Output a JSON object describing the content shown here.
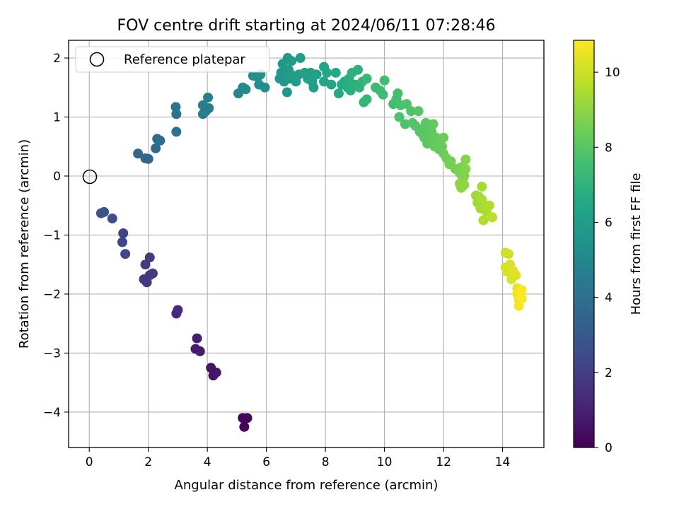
{
  "chart_data": {
    "type": "scatter",
    "title": "FOV centre drift starting at 2024/06/11 07:28:46",
    "xlabel": "Angular distance from reference (arcmin)",
    "ylabel": "Rotation from reference (arcmin)",
    "xlim": [
      -0.7,
      15.4
    ],
    "ylim": [
      -4.6,
      2.3
    ],
    "x_ticks": [
      0,
      2,
      4,
      6,
      8,
      10,
      12,
      14
    ],
    "y_ticks": [
      -4,
      -3,
      -2,
      -1,
      0,
      1,
      2
    ],
    "x_tick_labels": [
      "0",
      "2",
      "4",
      "6",
      "8",
      "10",
      "12",
      "14"
    ],
    "y_tick_labels": [
      "−4",
      "−3",
      "−2",
      "−1",
      "0",
      "1",
      "2"
    ],
    "grid": true,
    "legend": {
      "position": "top-left",
      "entries": [
        {
          "label": "Reference platepar",
          "marker": "open-circle",
          "x": 0,
          "y": 0
        }
      ]
    },
    "colorbar": {
      "label": "Hours from first FF file",
      "range": [
        0,
        10.85
      ],
      "ticks": [
        0,
        2,
        4,
        6,
        8,
        10
      ],
      "tick_labels": [
        "0",
        "2",
        "4",
        "6",
        "8",
        "10"
      ],
      "colormap": "viridis"
    },
    "points": [
      {
        "x": 5.25,
        "y": -4.25,
        "t": 0.05
      },
      {
        "x": 5.2,
        "y": -4.1,
        "t": 0.1
      },
      {
        "x": 5.35,
        "y": -4.1,
        "t": 0.15
      },
      {
        "x": 4.2,
        "y": -3.38,
        "t": 0.55
      },
      {
        "x": 4.12,
        "y": -3.25,
        "t": 0.6
      },
      {
        "x": 4.3,
        "y": -3.33,
        "t": 0.65
      },
      {
        "x": 3.6,
        "y": -2.93,
        "t": 0.85
      },
      {
        "x": 3.75,
        "y": -2.97,
        "t": 0.9
      },
      {
        "x": 3.65,
        "y": -2.75,
        "t": 0.95
      },
      {
        "x": 2.95,
        "y": -2.33,
        "t": 1.25
      },
      {
        "x": 3.0,
        "y": -2.27,
        "t": 1.3
      },
      {
        "x": 1.85,
        "y": -1.75,
        "t": 1.7
      },
      {
        "x": 1.95,
        "y": -1.8,
        "t": 1.75
      },
      {
        "x": 2.05,
        "y": -1.68,
        "t": 1.8
      },
      {
        "x": 2.15,
        "y": -1.65,
        "t": 1.82
      },
      {
        "x": 1.9,
        "y": -1.5,
        "t": 1.85
      },
      {
        "x": 2.05,
        "y": -1.38,
        "t": 1.9
      },
      {
        "x": 1.15,
        "y": -0.97,
        "t": 2.2
      },
      {
        "x": 1.12,
        "y": -1.12,
        "t": 2.22
      },
      {
        "x": 1.22,
        "y": -1.32,
        "t": 2.25
      },
      {
        "x": 0.78,
        "y": -0.72,
        "t": 2.55
      },
      {
        "x": 0.4,
        "y": -0.63,
        "t": 2.75
      },
      {
        "x": 0.5,
        "y": -0.61,
        "t": 2.8
      },
      {
        "x": 1.65,
        "y": 0.38,
        "t": 3.55
      },
      {
        "x": 1.9,
        "y": 0.3,
        "t": 3.6
      },
      {
        "x": 2.0,
        "y": 0.29,
        "t": 3.62
      },
      {
        "x": 2.25,
        "y": 0.47,
        "t": 3.75
      },
      {
        "x": 2.3,
        "y": 0.63,
        "t": 3.8
      },
      {
        "x": 2.4,
        "y": 0.6,
        "t": 3.85
      },
      {
        "x": 2.95,
        "y": 0.75,
        "t": 4.05
      },
      {
        "x": 2.95,
        "y": 1.05,
        "t": 4.15
      },
      {
        "x": 2.93,
        "y": 1.17,
        "t": 4.2
      },
      {
        "x": 3.85,
        "y": 1.05,
        "t": 4.45
      },
      {
        "x": 3.95,
        "y": 1.1,
        "t": 4.5
      },
      {
        "x": 4.05,
        "y": 1.15,
        "t": 4.55
      },
      {
        "x": 3.85,
        "y": 1.2,
        "t": 4.6
      },
      {
        "x": 4.02,
        "y": 1.33,
        "t": 4.65
      },
      {
        "x": 5.05,
        "y": 1.4,
        "t": 5.0
      },
      {
        "x": 5.2,
        "y": 1.5,
        "t": 5.05
      },
      {
        "x": 5.3,
        "y": 1.47,
        "t": 5.1
      },
      {
        "x": 5.55,
        "y": 1.7,
        "t": 5.25
      },
      {
        "x": 5.7,
        "y": 1.68,
        "t": 5.3
      },
      {
        "x": 5.75,
        "y": 1.55,
        "t": 5.35
      },
      {
        "x": 5.95,
        "y": 1.5,
        "t": 5.4
      },
      {
        "x": 5.8,
        "y": 1.72,
        "t": 5.45
      },
      {
        "x": 6.45,
        "y": 1.65,
        "t": 5.7
      },
      {
        "x": 6.5,
        "y": 1.75,
        "t": 5.72
      },
      {
        "x": 6.55,
        "y": 1.9,
        "t": 5.75
      },
      {
        "x": 6.6,
        "y": 1.6,
        "t": 5.78
      },
      {
        "x": 6.65,
        "y": 1.7,
        "t": 5.8
      },
      {
        "x": 6.7,
        "y": 1.42,
        "t": 5.82
      },
      {
        "x": 6.75,
        "y": 1.8,
        "t": 5.85
      },
      {
        "x": 6.8,
        "y": 1.65,
        "t": 5.88
      },
      {
        "x": 6.72,
        "y": 2.0,
        "t": 5.9
      },
      {
        "x": 6.85,
        "y": 1.95,
        "t": 5.93
      },
      {
        "x": 6.9,
        "y": 1.7,
        "t": 5.95
      },
      {
        "x": 7.0,
        "y": 1.6,
        "t": 5.98
      },
      {
        "x": 7.1,
        "y": 1.72,
        "t": 6.0
      },
      {
        "x": 7.15,
        "y": 2.0,
        "t": 6.02
      },
      {
        "x": 7.3,
        "y": 1.75,
        "t": 6.05
      },
      {
        "x": 7.4,
        "y": 1.65,
        "t": 6.08
      },
      {
        "x": 7.5,
        "y": 1.75,
        "t": 6.1
      },
      {
        "x": 7.55,
        "y": 1.6,
        "t": 6.12
      },
      {
        "x": 7.6,
        "y": 1.5,
        "t": 6.15
      },
      {
        "x": 7.7,
        "y": 1.72,
        "t": 6.18
      },
      {
        "x": 7.95,
        "y": 1.85,
        "t": 6.3
      },
      {
        "x": 7.95,
        "y": 1.6,
        "t": 6.35
      },
      {
        "x": 8.05,
        "y": 1.75,
        "t": 6.4
      },
      {
        "x": 8.2,
        "y": 1.55,
        "t": 6.45
      },
      {
        "x": 8.35,
        "y": 1.75,
        "t": 6.5
      },
      {
        "x": 8.45,
        "y": 1.4,
        "t": 6.55
      },
      {
        "x": 8.55,
        "y": 1.55,
        "t": 6.6
      },
      {
        "x": 8.65,
        "y": 1.6,
        "t": 6.65
      },
      {
        "x": 8.75,
        "y": 1.5,
        "t": 6.7
      },
      {
        "x": 8.8,
        "y": 1.65,
        "t": 6.75
      },
      {
        "x": 8.85,
        "y": 1.45,
        "t": 6.8
      },
      {
        "x": 8.9,
        "y": 1.75,
        "t": 6.85
      },
      {
        "x": 9.0,
        "y": 1.55,
        "t": 6.9
      },
      {
        "x": 9.1,
        "y": 1.8,
        "t": 6.95
      },
      {
        "x": 9.15,
        "y": 1.5,
        "t": 7.0
      },
      {
        "x": 9.25,
        "y": 1.6,
        "t": 7.05
      },
      {
        "x": 9.3,
        "y": 1.25,
        "t": 7.1
      },
      {
        "x": 9.4,
        "y": 1.3,
        "t": 7.15
      },
      {
        "x": 9.4,
        "y": 1.65,
        "t": 7.2
      },
      {
        "x": 9.7,
        "y": 1.5,
        "t": 7.3
      },
      {
        "x": 9.85,
        "y": 1.45,
        "t": 7.35
      },
      {
        "x": 9.95,
        "y": 1.38,
        "t": 7.4
      },
      {
        "x": 10.0,
        "y": 1.62,
        "t": 7.45
      },
      {
        "x": 10.3,
        "y": 1.22,
        "t": 7.55
      },
      {
        "x": 10.4,
        "y": 1.3,
        "t": 7.6
      },
      {
        "x": 10.45,
        "y": 1.4,
        "t": 7.62
      },
      {
        "x": 10.55,
        "y": 1.2,
        "t": 7.65
      },
      {
        "x": 10.5,
        "y": 1.0,
        "t": 7.7
      },
      {
        "x": 10.7,
        "y": 0.88,
        "t": 7.75
      },
      {
        "x": 10.75,
        "y": 1.22,
        "t": 7.8
      },
      {
        "x": 10.9,
        "y": 1.1,
        "t": 7.85
      },
      {
        "x": 10.95,
        "y": 0.9,
        "t": 7.88
      },
      {
        "x": 11.05,
        "y": 0.85,
        "t": 7.9
      },
      {
        "x": 11.15,
        "y": 1.1,
        "t": 7.92
      },
      {
        "x": 11.2,
        "y": 0.75,
        "t": 7.95
      },
      {
        "x": 11.25,
        "y": 0.8,
        "t": 7.98
      },
      {
        "x": 11.3,
        "y": 0.7,
        "t": 8.0
      },
      {
        "x": 11.35,
        "y": 0.65,
        "t": 8.02
      },
      {
        "x": 11.4,
        "y": 0.9,
        "t": 8.05
      },
      {
        "x": 11.45,
        "y": 0.55,
        "t": 8.08
      },
      {
        "x": 11.5,
        "y": 0.82,
        "t": 8.1
      },
      {
        "x": 11.55,
        "y": 0.6,
        "t": 8.12
      },
      {
        "x": 11.6,
        "y": 0.75,
        "t": 8.15
      },
      {
        "x": 11.65,
        "y": 0.88,
        "t": 8.18
      },
      {
        "x": 11.7,
        "y": 0.5,
        "t": 8.2
      },
      {
        "x": 11.75,
        "y": 0.65,
        "t": 8.22
      },
      {
        "x": 11.8,
        "y": 0.55,
        "t": 8.25
      },
      {
        "x": 11.85,
        "y": 0.45,
        "t": 8.28
      },
      {
        "x": 11.95,
        "y": 0.5,
        "t": 8.3
      },
      {
        "x": 12.0,
        "y": 0.65,
        "t": 8.35
      },
      {
        "x": 12.0,
        "y": 0.38,
        "t": 8.4
      },
      {
        "x": 12.1,
        "y": 0.3,
        "t": 8.45
      },
      {
        "x": 12.2,
        "y": 0.2,
        "t": 8.5
      },
      {
        "x": 12.25,
        "y": 0.25,
        "t": 8.55
      },
      {
        "x": 12.4,
        "y": 0.12,
        "t": 8.6
      },
      {
        "x": 12.55,
        "y": 0.05,
        "t": 8.65
      },
      {
        "x": 12.6,
        "y": 0.15,
        "t": 8.7
      },
      {
        "x": 12.65,
        "y": -0.05,
        "t": 8.75
      },
      {
        "x": 12.7,
        "y": 0.0,
        "t": 8.8
      },
      {
        "x": 12.75,
        "y": 0.12,
        "t": 8.85
      },
      {
        "x": 12.75,
        "y": 0.28,
        "t": 8.9
      },
      {
        "x": 12.55,
        "y": -0.13,
        "t": 8.95
      },
      {
        "x": 12.6,
        "y": -0.2,
        "t": 9.0
      },
      {
        "x": 12.7,
        "y": -0.15,
        "t": 9.05
      },
      {
        "x": 13.1,
        "y": -0.33,
        "t": 9.2
      },
      {
        "x": 13.15,
        "y": -0.45,
        "t": 9.25
      },
      {
        "x": 13.2,
        "y": -0.35,
        "t": 9.3
      },
      {
        "x": 13.25,
        "y": -0.55,
        "t": 9.35
      },
      {
        "x": 13.3,
        "y": -0.18,
        "t": 9.4
      },
      {
        "x": 13.3,
        "y": -0.4,
        "t": 9.42
      },
      {
        "x": 13.35,
        "y": -0.5,
        "t": 9.45
      },
      {
        "x": 13.45,
        "y": -0.6,
        "t": 9.5
      },
      {
        "x": 13.55,
        "y": -0.5,
        "t": 9.55
      },
      {
        "x": 13.35,
        "y": -0.75,
        "t": 9.6
      },
      {
        "x": 13.65,
        "y": -0.7,
        "t": 9.65
      },
      {
        "x": 14.1,
        "y": -1.3,
        "t": 10.0
      },
      {
        "x": 14.2,
        "y": -1.32,
        "t": 10.05
      },
      {
        "x": 14.1,
        "y": -1.55,
        "t": 10.1
      },
      {
        "x": 14.15,
        "y": -1.62,
        "t": 10.15
      },
      {
        "x": 14.25,
        "y": -1.5,
        "t": 10.2
      },
      {
        "x": 14.3,
        "y": -1.75,
        "t": 10.25
      },
      {
        "x": 14.35,
        "y": -1.6,
        "t": 10.3
      },
      {
        "x": 14.45,
        "y": -1.68,
        "t": 10.35
      },
      {
        "x": 14.5,
        "y": -1.9,
        "t": 10.5
      },
      {
        "x": 14.5,
        "y": -2.0,
        "t": 10.55
      },
      {
        "x": 14.55,
        "y": -2.1,
        "t": 10.6
      },
      {
        "x": 14.6,
        "y": -1.95,
        "t": 10.65
      },
      {
        "x": 14.6,
        "y": -2.05,
        "t": 10.7
      },
      {
        "x": 14.55,
        "y": -2.2,
        "t": 10.75
      },
      {
        "x": 14.65,
        "y": -2.08,
        "t": 10.8
      },
      {
        "x": 14.65,
        "y": -1.93,
        "t": 10.85
      }
    ]
  }
}
